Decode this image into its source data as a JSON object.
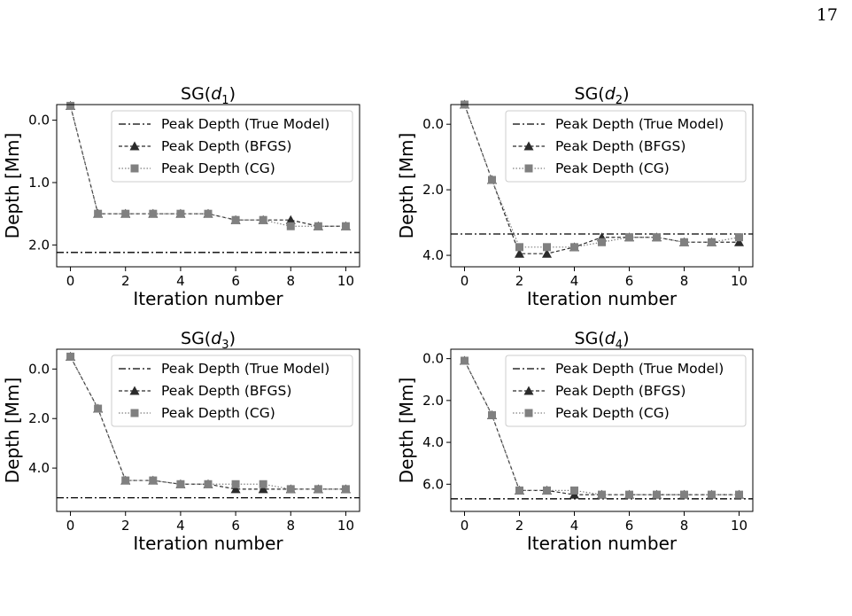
{
  "page_number": "17",
  "legend_labels": {
    "true": "Peak Depth (True Model)",
    "bfgs": "Peak Depth (BFGS)",
    "cg": "Peak Depth (CG)"
  },
  "colors": {
    "true": "#000000",
    "bfgs": "#2b2b2b",
    "cg": "#808080"
  },
  "chart_data": [
    {
      "type": "line",
      "title_prefix": "SG(",
      "title_var": "d",
      "title_sub": "1",
      "title_suffix": ")",
      "xlabel": "Iteration number",
      "ylabel": "Depth [Mm]",
      "y_inverted": true,
      "xlim": [
        -0.5,
        10.5
      ],
      "ylim": [
        -0.25,
        2.35
      ],
      "xticks": [
        0,
        2,
        4,
        6,
        8,
        10
      ],
      "yticks": [
        0.0,
        1.0,
        2.0
      ],
      "legend_position": "top-right",
      "x": [
        0,
        1,
        2,
        3,
        4,
        5,
        6,
        7,
        8,
        9,
        10
      ],
      "true_depth": 2.12,
      "series": [
        {
          "key": "bfgs",
          "marker": "triangle",
          "values": [
            -0.23,
            1.5,
            1.5,
            1.5,
            1.5,
            1.5,
            1.6,
            1.6,
            1.6,
            1.7,
            1.7
          ]
        },
        {
          "key": "cg",
          "marker": "square",
          "values": [
            -0.23,
            1.5,
            1.5,
            1.5,
            1.5,
            1.5,
            1.6,
            1.6,
            1.7,
            1.7,
            1.7
          ]
        }
      ]
    },
    {
      "type": "line",
      "title_prefix": "SG(",
      "title_var": "d",
      "title_sub": "2",
      "title_suffix": ")",
      "xlabel": "Iteration number",
      "ylabel": "Depth [Mm]",
      "y_inverted": true,
      "xlim": [
        -0.5,
        10.5
      ],
      "ylim": [
        -0.6,
        4.35
      ],
      "xticks": [
        0,
        2,
        4,
        6,
        8,
        10
      ],
      "yticks": [
        0.0,
        2.0,
        4.0
      ],
      "legend_position": "top-right",
      "x": [
        0,
        1,
        2,
        3,
        4,
        5,
        6,
        7,
        8,
        9,
        10
      ],
      "true_depth": 3.35,
      "series": [
        {
          "key": "bfgs",
          "marker": "triangle",
          "values": [
            -0.6,
            1.7,
            3.95,
            3.95,
            3.75,
            3.45,
            3.45,
            3.45,
            3.6,
            3.6,
            3.6
          ]
        },
        {
          "key": "cg",
          "marker": "square",
          "values": [
            -0.6,
            1.7,
            3.75,
            3.75,
            3.75,
            3.6,
            3.45,
            3.45,
            3.6,
            3.6,
            3.45
          ]
        }
      ]
    },
    {
      "type": "line",
      "title_prefix": "SG(",
      "title_var": "d",
      "title_sub": "3",
      "title_suffix": ")",
      "xlabel": "Iteration number",
      "ylabel": "Depth [Mm]",
      "y_inverted": true,
      "xlim": [
        -0.5,
        10.5
      ],
      "ylim": [
        -0.8,
        5.75
      ],
      "xticks": [
        0,
        2,
        4,
        6,
        8,
        10
      ],
      "yticks": [
        0.0,
        2.0,
        4.0
      ],
      "legend_position": "top-right",
      "x": [
        0,
        1,
        2,
        3,
        4,
        5,
        6,
        7,
        8,
        9,
        10
      ],
      "true_depth": 5.2,
      "series": [
        {
          "key": "bfgs",
          "marker": "triangle",
          "values": [
            -0.5,
            1.6,
            4.5,
            4.5,
            4.65,
            4.65,
            4.85,
            4.85,
            4.85,
            4.85,
            4.85
          ]
        },
        {
          "key": "cg",
          "marker": "square",
          "values": [
            -0.5,
            1.6,
            4.5,
            4.5,
            4.65,
            4.65,
            4.65,
            4.65,
            4.85,
            4.85,
            4.85
          ]
        }
      ]
    },
    {
      "type": "line",
      "title_prefix": "SG(",
      "title_var": "d",
      "title_sub": "4",
      "title_suffix": ")",
      "xlabel": "Iteration number",
      "ylabel": "Depth [Mm]",
      "y_inverted": true,
      "xlim": [
        -0.5,
        10.5
      ],
      "ylim": [
        -0.45,
        7.3
      ],
      "xticks": [
        0,
        2,
        4,
        6,
        8,
        10
      ],
      "yticks": [
        0.0,
        2.0,
        4.0,
        6.0
      ],
      "legend_position": "top-right",
      "x": [
        0,
        1,
        2,
        3,
        4,
        5,
        6,
        7,
        8,
        9,
        10
      ],
      "true_depth": 6.7,
      "series": [
        {
          "key": "bfgs",
          "marker": "triangle",
          "values": [
            0.1,
            2.7,
            6.3,
            6.3,
            6.5,
            6.5,
            6.5,
            6.5,
            6.5,
            6.5,
            6.5
          ]
        },
        {
          "key": "cg",
          "marker": "square",
          "values": [
            0.1,
            2.7,
            6.3,
            6.3,
            6.3,
            6.5,
            6.5,
            6.5,
            6.5,
            6.5,
            6.5
          ]
        }
      ]
    }
  ]
}
